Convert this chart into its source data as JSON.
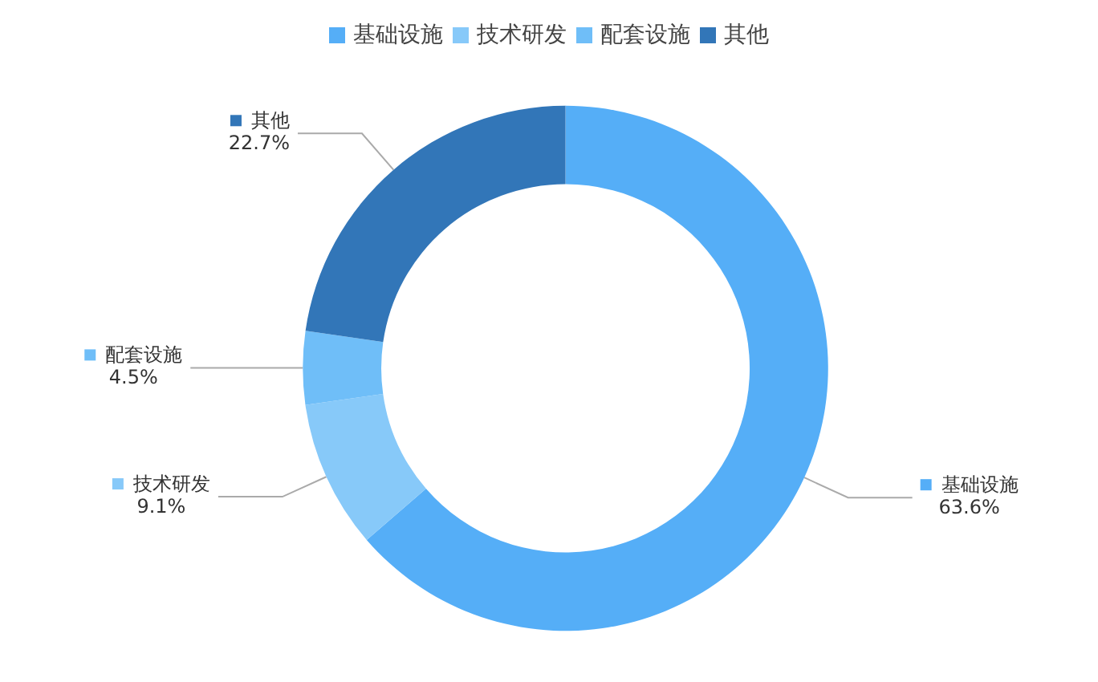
{
  "chart_data": {
    "type": "donut",
    "categories": [
      "基础设施",
      "技术研发",
      "配套设施",
      "其他"
    ],
    "values": [
      63.6,
      9.1,
      4.5,
      22.7
    ],
    "value_labels": [
      "63.6%",
      "9.1%",
      "4.5%",
      "22.7%"
    ],
    "colors": [
      "#55aef7",
      "#87c9f9",
      "#6fbef8",
      "#3276b8"
    ],
    "legend": "top"
  }
}
